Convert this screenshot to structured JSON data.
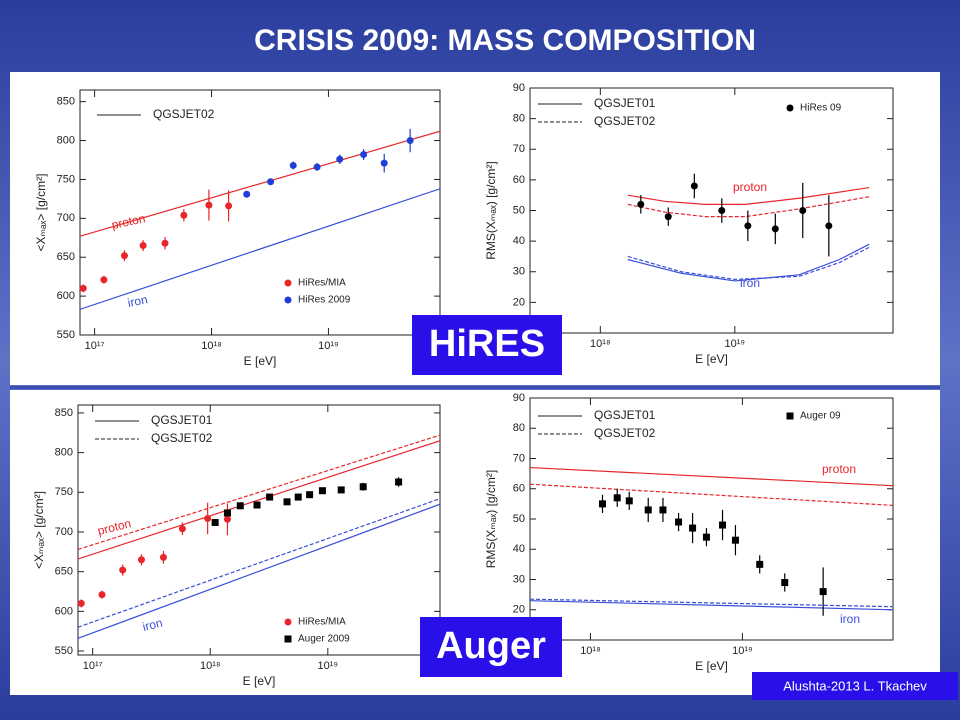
{
  "slide": {
    "title": "CRISIS 2009: MASS COMPOSITION",
    "labels": [
      "HiRES",
      "Auger"
    ],
    "footer": "Alushta-2013 L. Tkachev"
  },
  "chart_data": [
    {
      "type": "scatter",
      "xscale": "log",
      "xlabel": "E [eV]",
      "ylabel": "<Xₘₐₓ> [g/cm²]",
      "xlim": [
        7.5e+16,
        9e+19
      ],
      "ylim": [
        550,
        865
      ],
      "xticks": [
        {
          "value": 1e+17,
          "label": "10¹⁷"
        },
        {
          "value": 1e+18,
          "label": "10¹⁸"
        },
        {
          "value": 1e+19,
          "label": "10¹⁹"
        }
      ],
      "yticks": [
        550,
        600,
        650,
        700,
        750,
        800,
        850
      ],
      "legend": [
        {
          "label": "QGSJET02",
          "style": "solid"
        }
      ],
      "models": [
        {
          "name": "proton",
          "color": "#e8262a",
          "lines": [
            {
              "style": "solid",
              "x": [
                7.5e+16,
                9e+19
              ],
              "values": [
                677,
                812
              ]
            }
          ]
        },
        {
          "name": "iron",
          "color": "#3a4fd8",
          "lines": [
            {
              "style": "solid",
              "x": [
                7.5e+16,
                9e+19
              ],
              "values": [
                583,
                738
              ]
            }
          ]
        }
      ],
      "series": [
        {
          "name": "HiRes/MIA",
          "color": "#e8262a",
          "marker": "circle",
          "x": [
            8e+16,
            1.2e+17,
            1.8e+17,
            2.6e+17,
            4e+17,
            5.8e+17,
            9.5e+17,
            1.4e+18
          ],
          "values": [
            610,
            621,
            652,
            665,
            668,
            704,
            717,
            716
          ],
          "errors": [
            5,
            5,
            7,
            7,
            8,
            8,
            20,
            20
          ]
        },
        {
          "name": "HiRes 2009",
          "color": "#1f3fd6",
          "marker": "circle",
          "x": [
            2e+18,
            3.2e+18,
            5e+18,
            8e+18,
            1.25e+19,
            2e+19,
            3e+19,
            5e+19
          ],
          "values": [
            731,
            747,
            768,
            766,
            776,
            782,
            771,
            800
          ],
          "errors": [
            4,
            4,
            5,
            5,
            6,
            7,
            12,
            15
          ]
        }
      ]
    },
    {
      "type": "scatter",
      "xscale": "log",
      "xlabel": "E [eV]",
      "ylabel": "RMS(Xₘₐₓ) [g/cm²]",
      "xlim": [
        3e+17,
        1.5e+20
      ],
      "ylim": [
        10,
        90
      ],
      "xticks": [
        {
          "value": 1e+18,
          "label": "10¹⁸"
        },
        {
          "value": 1e+19,
          "label": "10¹⁹"
        }
      ],
      "yticks": [
        20,
        30,
        40,
        50,
        60,
        70,
        80,
        90
      ],
      "legend": [
        {
          "label": "QGSJET01",
          "style": "solid"
        },
        {
          "label": "QGSJET02",
          "style": "dashed"
        }
      ],
      "models": [
        {
          "name": "proton",
          "color": "#e8262a",
          "lines": [
            {
              "style": "solid",
              "x": [
                1.6e+18,
                3e+18,
                6e+18,
                1.2e+19,
                3e+19,
                1e+20
              ],
              "values": [
                55,
                53,
                52,
                52,
                54,
                57.5
              ]
            },
            {
              "style": "dashed",
              "x": [
                1.6e+18,
                3e+18,
                6e+18,
                1.2e+19,
                3e+19,
                1e+20
              ],
              "values": [
                52,
                49.5,
                48,
                48,
                50.5,
                54.5
              ]
            }
          ]
        },
        {
          "name": "iron",
          "color": "#3a4fd8",
          "lines": [
            {
              "style": "solid",
              "x": [
                1.6e+18,
                4e+18,
                1e+19,
                3e+19,
                6e+19,
                1e+20
              ],
              "values": [
                34,
                29.5,
                27,
                29,
                34,
                39
              ]
            },
            {
              "style": "dashed",
              "x": [
                1.6e+18,
                4e+18,
                1e+19,
                3e+19,
                6e+19,
                1e+20
              ],
              "values": [
                35,
                30,
                27.5,
                28.5,
                33,
                38
              ]
            }
          ]
        }
      ],
      "series": [
        {
          "name": "HiRes 09",
          "color": "#000000",
          "marker": "circle",
          "x": [
            2e+18,
            3.2e+18,
            5e+18,
            8e+18,
            1.25e+19,
            2e+19,
            3.2e+19,
            5e+19
          ],
          "values": [
            52,
            48,
            58,
            50,
            45,
            44,
            50,
            45
          ],
          "errors": [
            3,
            3,
            4,
            4,
            5,
            5,
            9,
            10
          ]
        }
      ]
    },
    {
      "type": "scatter",
      "xscale": "log",
      "xlabel": "E [eV]",
      "ylabel": "<Xₘₐₓ> [g/cm²]",
      "xlim": [
        7.5e+16,
        9e+19
      ],
      "ylim": [
        545,
        860
      ],
      "xticks": [
        {
          "value": 1e+17,
          "label": "10¹⁷"
        },
        {
          "value": 1e+18,
          "label": "10¹⁸"
        },
        {
          "value": 1e+19,
          "label": "10¹⁹"
        }
      ],
      "yticks": [
        550,
        600,
        650,
        700,
        750,
        800,
        850
      ],
      "legend": [
        {
          "label": "QGSJET01",
          "style": "solid"
        },
        {
          "label": "QGSJET02",
          "style": "dashed"
        }
      ],
      "models": [
        {
          "name": "proton",
          "color": "#e8262a",
          "lines": [
            {
              "style": "solid",
              "x": [
                7.5e+16,
                9e+19
              ],
              "values": [
                666,
                815
              ]
            },
            {
              "style": "dashed",
              "x": [
                7.5e+16,
                9e+19
              ],
              "values": [
                678,
                822
              ]
            }
          ]
        },
        {
          "name": "iron",
          "color": "#3a4fd8",
          "lines": [
            {
              "style": "solid",
              "x": [
                7.5e+16,
                9e+19
              ],
              "values": [
                566,
                735
              ]
            },
            {
              "style": "dashed",
              "x": [
                7.5e+16,
                9e+19
              ],
              "values": [
                580,
                742
              ]
            }
          ]
        }
      ],
      "series": [
        {
          "name": "HiRes/MIA",
          "color": "#e8262a",
          "marker": "circle",
          "x": [
            8e+16,
            1.2e+17,
            1.8e+17,
            2.6e+17,
            4e+17,
            5.8e+17,
            9.5e+17,
            1.4e+18
          ],
          "values": [
            610,
            621,
            652,
            665,
            668,
            704,
            717,
            716
          ],
          "errors": [
            5,
            5,
            7,
            7,
            8,
            8,
            20,
            20
          ]
        },
        {
          "name": "Auger 2009",
          "color": "#000000",
          "marker": "square",
          "x": [
            1.1e+18,
            1.4e+18,
            1.8e+18,
            2.5e+18,
            3.2e+18,
            4.5e+18,
            5.6e+18,
            7e+18,
            9e+18,
            1.3e+19,
            2e+19,
            4e+19
          ],
          "values": [
            712,
            724,
            733,
            734,
            744,
            738,
            744,
            747,
            752,
            753,
            757,
            763
          ],
          "errors": [
            4,
            4,
            4,
            4,
            4,
            4,
            4,
            4,
            4,
            4,
            5,
            6
          ]
        }
      ]
    },
    {
      "type": "scatter",
      "xscale": "log",
      "xlabel": "E [eV]",
      "ylabel": "RMS(Xₘₐₓ) [g/cm²]",
      "xlim": [
        4e+17,
        9.8e+19
      ],
      "ylim": [
        10,
        90
      ],
      "xticks": [
        {
          "value": 1e+18,
          "label": "10¹⁸"
        },
        {
          "value": 1e+19,
          "label": "10¹⁹"
        }
      ],
      "yticks": [
        20,
        30,
        40,
        50,
        60,
        70,
        80,
        90
      ],
      "legend": [
        {
          "label": "QGSJET01",
          "style": "solid"
        },
        {
          "label": "QGSJET02",
          "style": "dashed"
        }
      ],
      "models": [
        {
          "name": "proton",
          "color": "#e8262a",
          "lines": [
            {
              "style": "solid",
              "x": [
                4e+17,
                9.8e+19
              ],
              "values": [
                67,
                61
              ]
            },
            {
              "style": "dashed",
              "x": [
                4e+17,
                9.8e+19
              ],
              "values": [
                61.5,
                54.5
              ]
            }
          ]
        },
        {
          "name": "iron",
          "color": "#3a4fd8",
          "lines": [
            {
              "style": "solid",
              "x": [
                4e+17,
                9.8e+19
              ],
              "values": [
                23,
                20
              ]
            },
            {
              "style": "dashed",
              "x": [
                4e+17,
                9.8e+19
              ],
              "values": [
                23.5,
                21
              ]
            }
          ]
        }
      ],
      "series": [
        {
          "name": "Auger 09",
          "color": "#000000",
          "marker": "square",
          "x": [
            1.2e+18,
            1.5e+18,
            1.8e+18,
            2.4e+18,
            3e+18,
            3.8e+18,
            4.7e+18,
            5.8e+18,
            7.4e+18,
            9e+18,
            1.3e+19,
            1.9e+19,
            3.4e+19
          ],
          "values": [
            55,
            57,
            56,
            53,
            53,
            49,
            47,
            44,
            48,
            43,
            35,
            29,
            26
          ],
          "errors": [
            3,
            3,
            3,
            4,
            4,
            3,
            5,
            3,
            5,
            5,
            3,
            3,
            8
          ]
        }
      ]
    }
  ]
}
